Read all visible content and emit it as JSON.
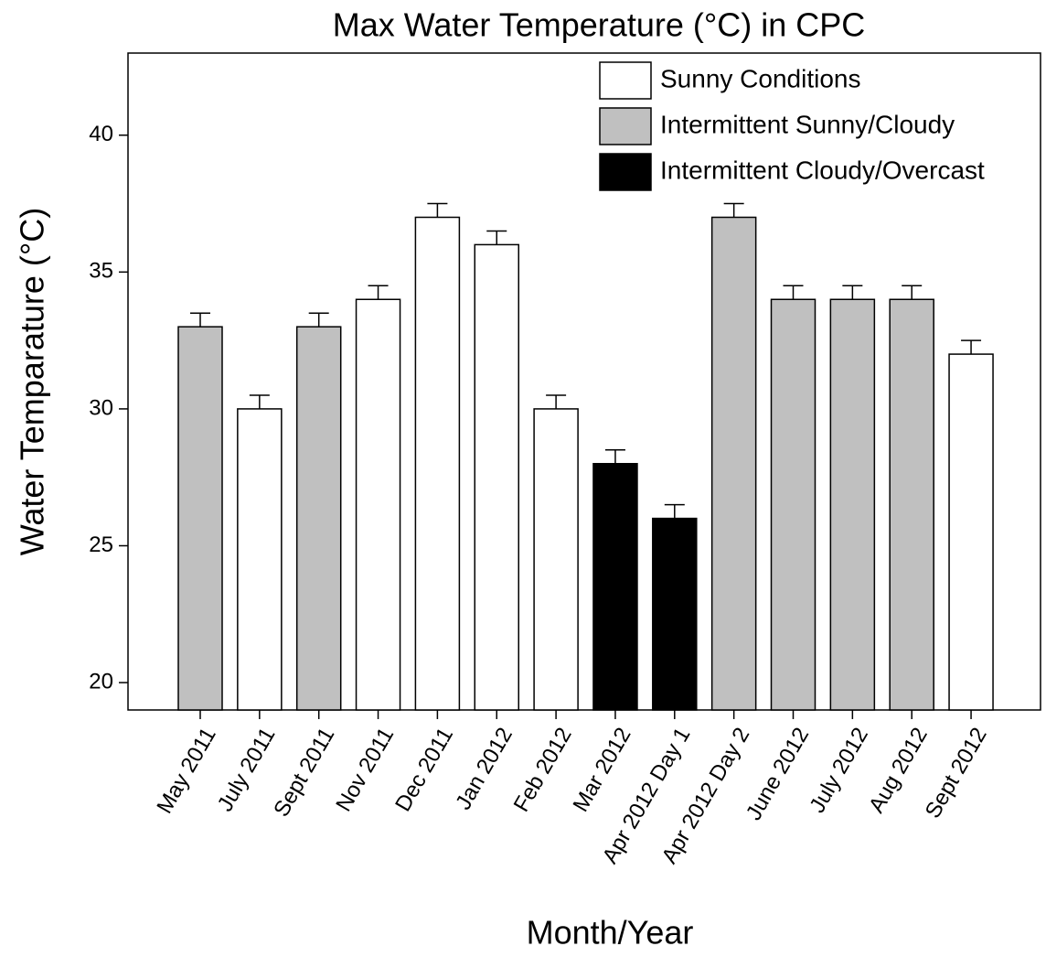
{
  "chart_data": {
    "type": "bar",
    "title": "Max Water Temperature (°C) in CPC",
    "xlabel": "Month/Year",
    "ylabel": "Water Temparature (°C)",
    "categories": [
      "May 2011",
      "July 2011",
      "Sept 2011",
      "Nov 2011",
      "Dec 2011",
      "Jan 2012",
      "Feb 2012",
      "Mar 2012",
      "Apr 2012 Day 1",
      "Apr 2012 Day 2",
      "June 2012",
      "July 2012",
      "Aug 2012",
      "Sept 2012"
    ],
    "series": [
      {
        "name": "Sunny Conditions",
        "color": "#ffffff",
        "values": [
          null,
          30,
          null,
          34,
          37,
          36,
          30,
          null,
          null,
          null,
          null,
          null,
          null,
          32
        ],
        "errors": [
          null,
          0.5,
          null,
          0.5,
          0.5,
          0.5,
          0.5,
          null,
          null,
          null,
          null,
          null,
          null,
          0.5
        ]
      },
      {
        "name": "Intermittent Sunny/Cloudy",
        "color": "#c0c0c0",
        "values": [
          33,
          null,
          33,
          null,
          null,
          null,
          null,
          null,
          null,
          37,
          34,
          34,
          34,
          null
        ],
        "errors": [
          0.5,
          null,
          0.5,
          null,
          null,
          null,
          null,
          null,
          null,
          0.5,
          0.5,
          0.5,
          0.5,
          null
        ]
      },
      {
        "name": "Intermittent Cloudy/Overcast",
        "color": "#000000",
        "values": [
          null,
          null,
          null,
          null,
          null,
          null,
          null,
          28,
          26,
          null,
          null,
          null,
          null,
          null
        ],
        "errors": [
          null,
          null,
          null,
          null,
          null,
          null,
          null,
          0.5,
          0.5,
          null,
          null,
          null,
          null,
          null
        ]
      }
    ],
    "ylim": [
      19,
      43
    ],
    "yticks": [
      20,
      25,
      30,
      35,
      40
    ],
    "legend": "upper right",
    "grid": false
  }
}
